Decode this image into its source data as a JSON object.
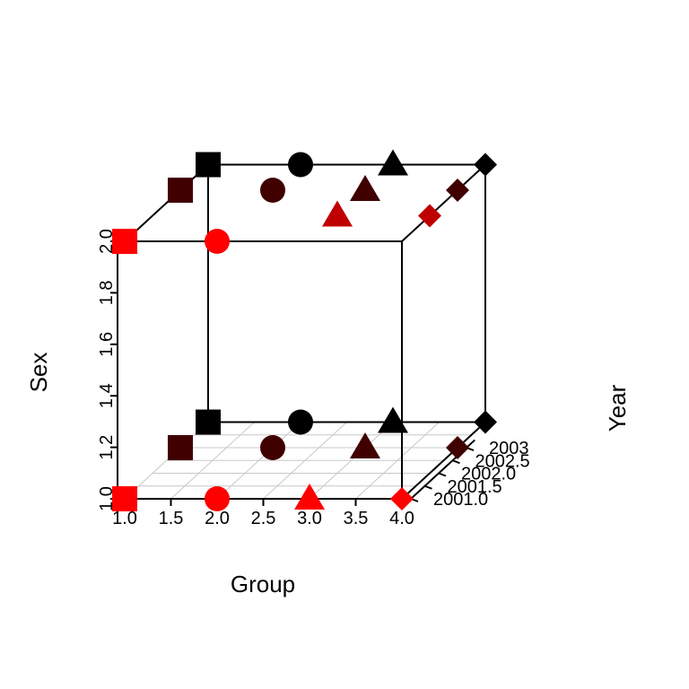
{
  "chart_data": {
    "type": "scatter3d",
    "title": "",
    "xlabel": "Group",
    "ylabel": "Year",
    "zlabel": "Sex",
    "xlim": [
      1,
      4
    ],
    "ylim": [
      2001,
      2003
    ],
    "zlim": [
      1,
      2
    ],
    "x_ticks": [
      "1.0",
      "1.5",
      "2.0",
      "2.5",
      "3.0",
      "3.5",
      "4.0"
    ],
    "y_ticks": [
      "2001.0",
      "2001.5",
      "2002.0",
      "2002.5",
      "2003"
    ],
    "z_ticks": [
      "1.0",
      "1.2",
      "1.4",
      "1.6",
      "1.8",
      "2.0"
    ],
    "grid": true,
    "box": true,
    "colors": {
      "2001": "#ff0000",
      "2002": "#c00000",
      "2003": "#400000",
      "2004": "#000000"
    },
    "shapes": {
      "1": "square",
      "2": "circle",
      "3": "triangle",
      "4": "diamond"
    },
    "points": [
      {
        "group": 1,
        "year": 2001,
        "sex": 1
      },
      {
        "group": 2,
        "year": 2001,
        "sex": 1
      },
      {
        "group": 3,
        "year": 2001,
        "sex": 1
      },
      {
        "group": 4,
        "year": 2001,
        "sex": 1
      },
      {
        "group": 1,
        "year": 2003,
        "sex": 1
      },
      {
        "group": 2,
        "year": 2003,
        "sex": 1
      },
      {
        "group": 3,
        "year": 2003,
        "sex": 1
      },
      {
        "group": 4,
        "year": 2003,
        "sex": 1
      },
      {
        "group": 1,
        "year": 2004,
        "sex": 1
      },
      {
        "group": 2,
        "year": 2004,
        "sex": 1
      },
      {
        "group": 3,
        "year": 2004,
        "sex": 1
      },
      {
        "group": 4,
        "year": 2004,
        "sex": 1
      },
      {
        "group": 1,
        "year": 2001,
        "sex": 2
      },
      {
        "group": 2,
        "year": 2001,
        "sex": 2
      },
      {
        "group": 3,
        "year": 2002,
        "sex": 2
      },
      {
        "group": 4,
        "year": 2002,
        "sex": 2
      },
      {
        "group": 1,
        "year": 2003,
        "sex": 2
      },
      {
        "group": 2,
        "year": 2003,
        "sex": 2
      },
      {
        "group": 3,
        "year": 2003,
        "sex": 2
      },
      {
        "group": 4,
        "year": 2003,
        "sex": 2
      },
      {
        "group": 1,
        "year": 2004,
        "sex": 2
      },
      {
        "group": 2,
        "year": 2004,
        "sex": 2
      },
      {
        "group": 3,
        "year": 2004,
        "sex": 2
      },
      {
        "group": 4,
        "year": 2004,
        "sex": 2
      }
    ]
  }
}
